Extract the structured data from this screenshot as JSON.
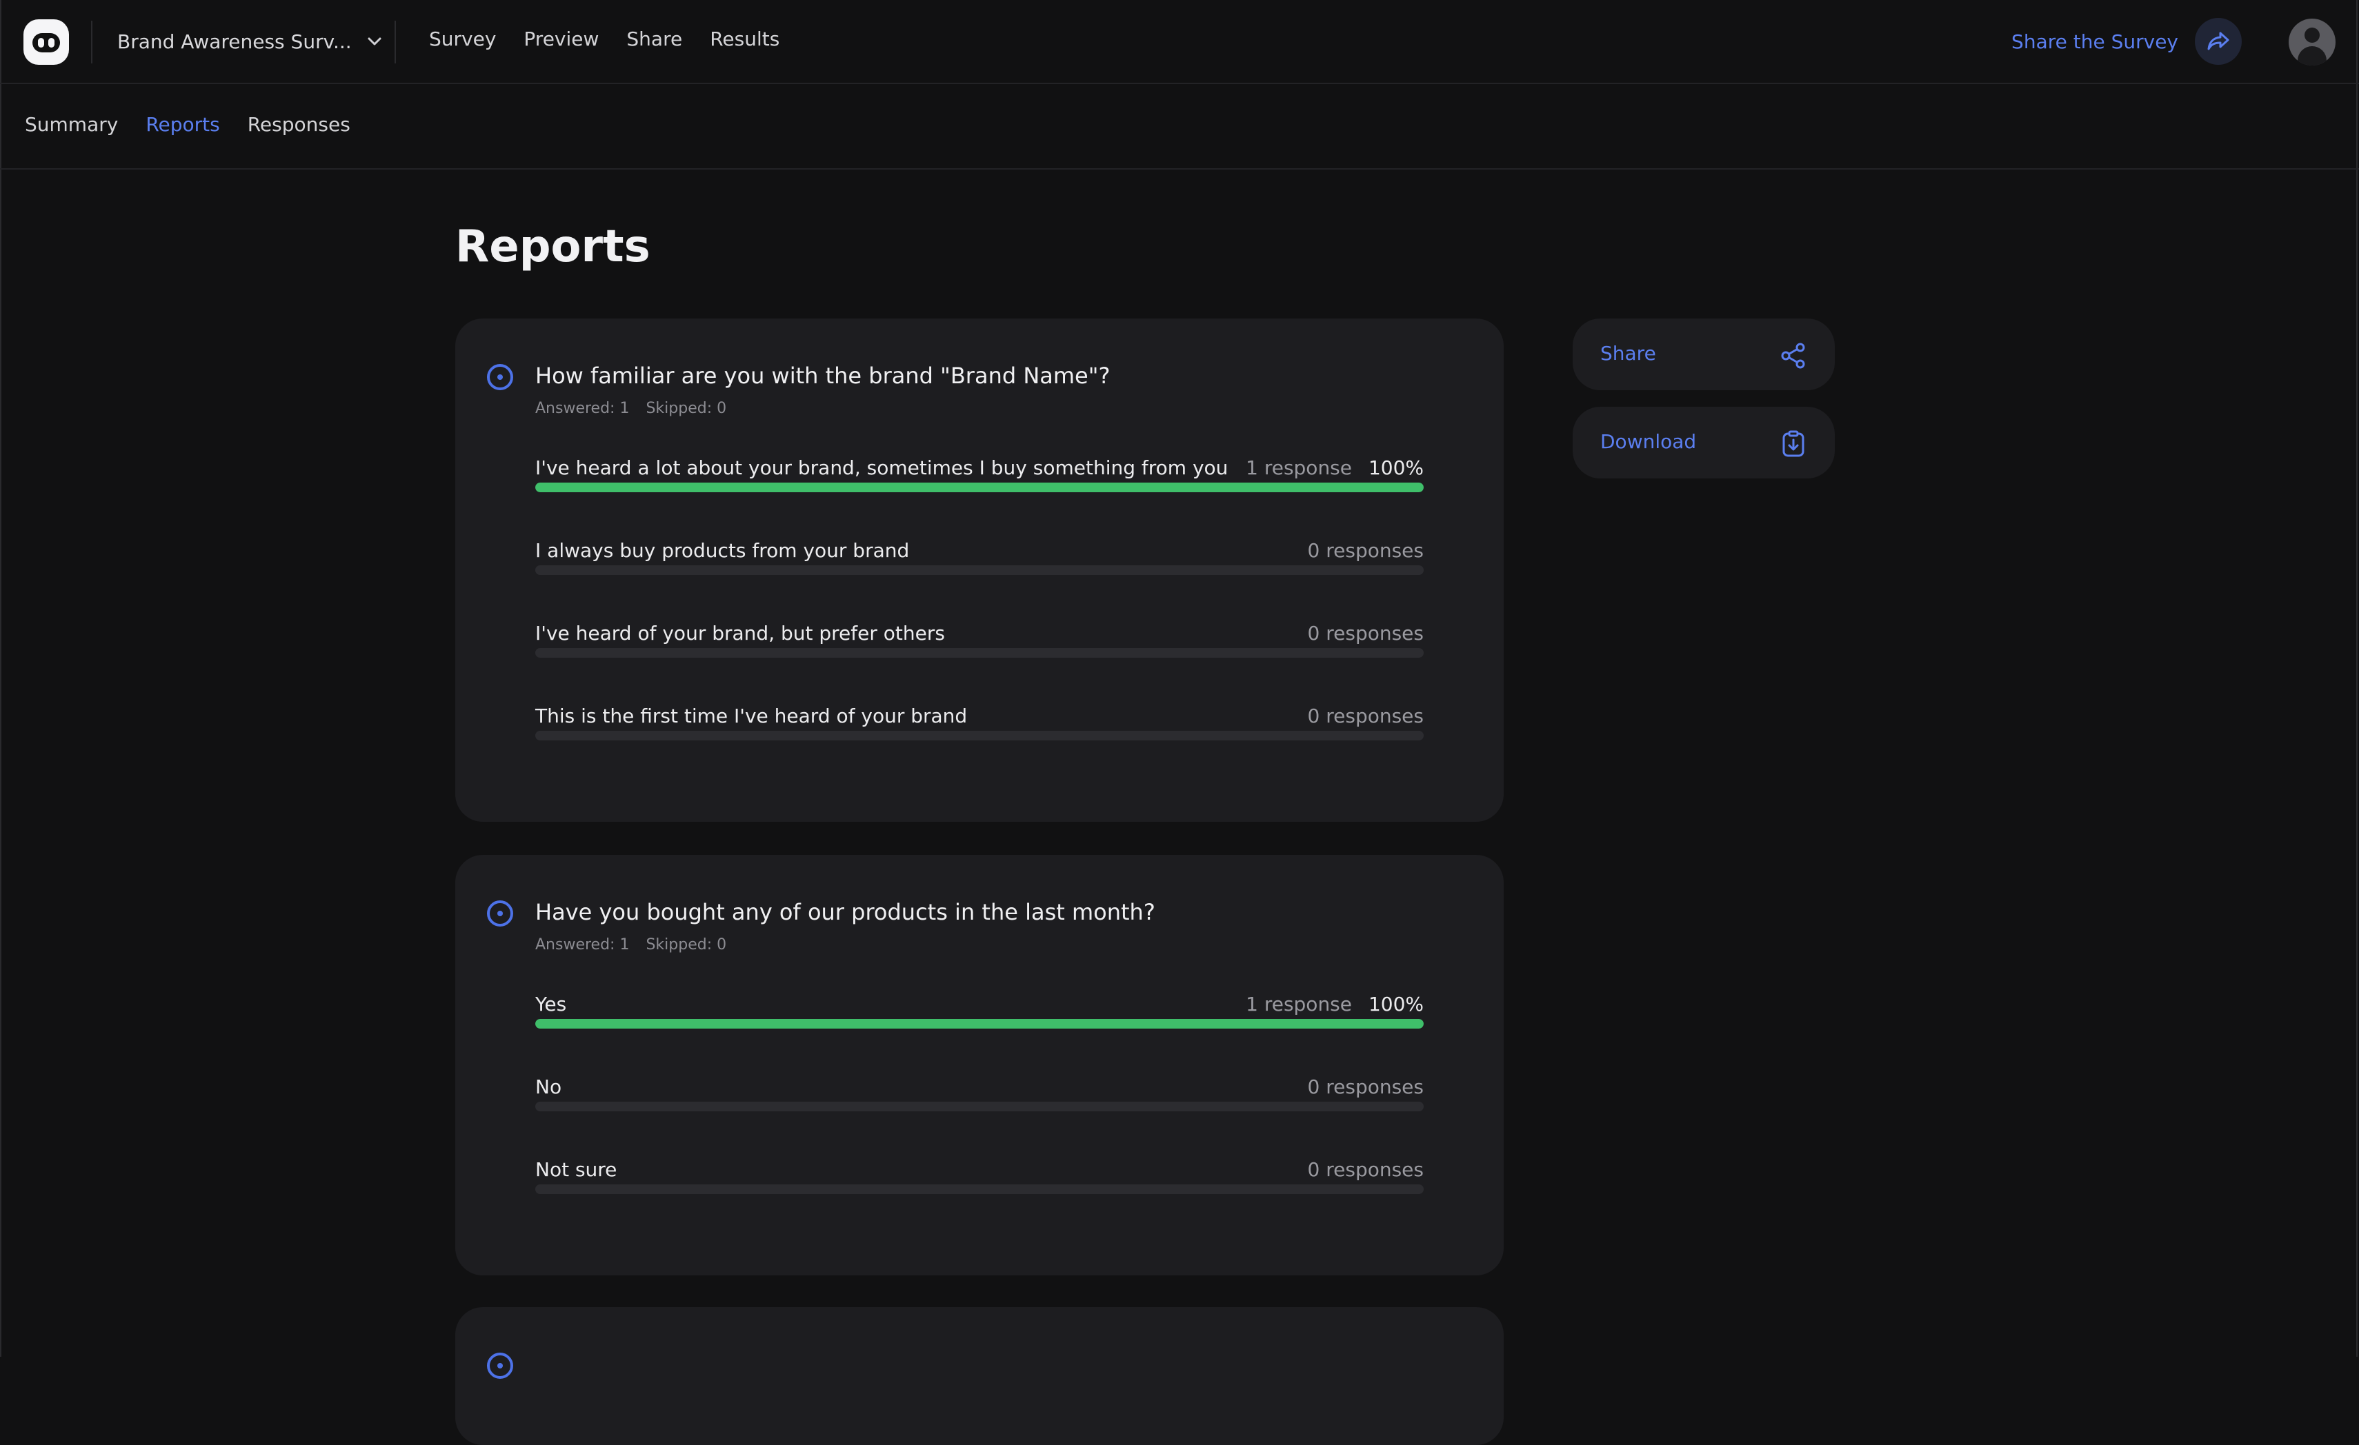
{
  "topnav": {
    "survey_name": "Brand Awareness Surv...",
    "tabs": [
      "Survey",
      "Preview",
      "Share",
      "Results"
    ],
    "share_survey_label": "Share the Survey"
  },
  "subnav": {
    "tabs": [
      "Summary",
      "Reports",
      "Responses"
    ],
    "active": "Reports"
  },
  "page_title": "Reports",
  "colors": {
    "accent": "#5b7ff0",
    "bar_fill": "#3fbf6a",
    "background": "#111112",
    "card": "#1d1d20"
  },
  "side_actions": {
    "share_label": "Share",
    "download_label": "Download"
  },
  "questions": [
    {
      "title": "How familiar are you with the brand \"Brand Name\"?",
      "answered": "Answered: 1",
      "skipped": "Skipped: 0",
      "options": [
        {
          "label": "I've heard a lot about your brand, sometimes I buy something from you",
          "count": "1 response",
          "percent": "100%",
          "fraction": 1.0
        },
        {
          "label": "I always buy products from your brand",
          "count": "0 responses",
          "percent": "",
          "fraction": 0
        },
        {
          "label": "I've heard of your brand, but prefer others",
          "count": "0 responses",
          "percent": "",
          "fraction": 0
        },
        {
          "label": "This is the first time I've heard of your brand",
          "count": "0 responses",
          "percent": "",
          "fraction": 0
        }
      ]
    },
    {
      "title": "Have you bought any of our products in the last month?",
      "answered": "Answered: 1",
      "skipped": "Skipped: 0",
      "options": [
        {
          "label": "Yes",
          "count": "1 response",
          "percent": "100%",
          "fraction": 1.0
        },
        {
          "label": "No",
          "count": "0 responses",
          "percent": "",
          "fraction": 0
        },
        {
          "label": "Not sure",
          "count": "0 responses",
          "percent": "",
          "fraction": 0
        }
      ]
    }
  ]
}
